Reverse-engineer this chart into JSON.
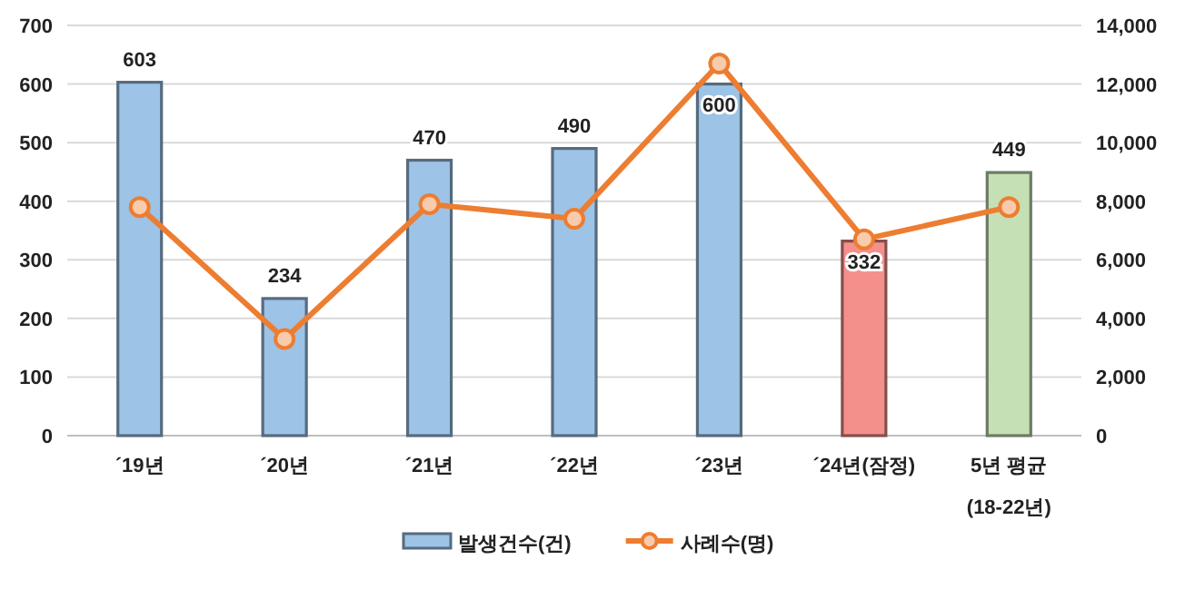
{
  "chart_data": {
    "type": "bar",
    "categories": [
      "´19년",
      "´20년",
      "´21년",
      "´22년",
      "´23년",
      "´24년(잠정)",
      "5년 평균\n(18-22년)"
    ],
    "series": [
      {
        "name": "발생건수(건)",
        "color": "#9dc3e6",
        "colors": [
          "#9dc3e6",
          "#9dc3e6",
          "#9dc3e6",
          "#9dc3e6",
          "#9dc3e6",
          "#f4908b",
          "#c5e0b4"
        ],
        "values": [
          603,
          234,
          470,
          490,
          600,
          332,
          449
        ],
        "value_labels": [
          "603",
          "234",
          "470",
          "490",
          "600",
          "332",
          "449"
        ]
      },
      {
        "name": "사례수(명)",
        "type": "line",
        "axis": "y2",
        "color": "#ed7d31",
        "marker": "circle",
        "values": [
          7800,
          3300,
          7900,
          7400,
          12700,
          6700,
          7800
        ]
      }
    ],
    "ylim": [
      0,
      700
    ],
    "yticks": [
      0,
      100,
      200,
      300,
      400,
      500,
      600,
      700
    ],
    "y2lim": [
      0,
      14000
    ],
    "y2ticks": [
      {
        "value": 0,
        "label": "0"
      },
      {
        "value": 2000,
        "label": "2,000"
      },
      {
        "value": 4000,
        "label": "4,000"
      },
      {
        "value": 6000,
        "label": "6,000"
      },
      {
        "value": 8000,
        "label": "8,000"
      },
      {
        "value": 10000,
        "label": "10,000"
      },
      {
        "value": 12000,
        "label": "12,000"
      },
      {
        "value": 14000,
        "label": "14,000"
      }
    ],
    "grid": "y",
    "legend": "bottom"
  }
}
